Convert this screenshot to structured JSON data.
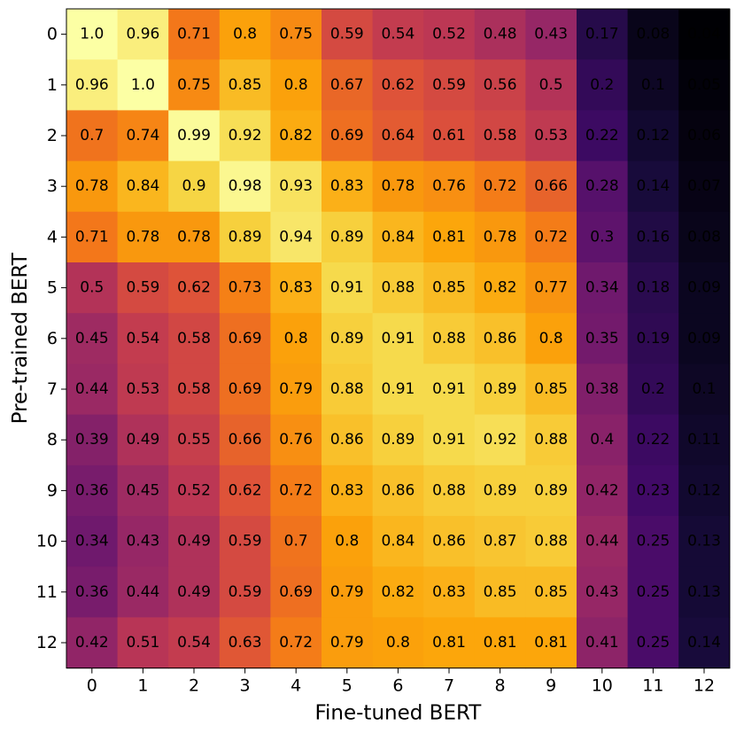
{
  "chart_data": {
    "type": "heatmap",
    "title": "",
    "xlabel": "Fine-tuned BERT",
    "ylabel": "Pre-trained BERT",
    "x_categories": [
      "0",
      "1",
      "2",
      "3",
      "4",
      "5",
      "6",
      "7",
      "8",
      "9",
      "10",
      "11",
      "12"
    ],
    "y_categories": [
      "0",
      "1",
      "2",
      "3",
      "4",
      "5",
      "6",
      "7",
      "8",
      "9",
      "10",
      "11",
      "12"
    ],
    "colormap": "inferno",
    "vmin": 0.04,
    "vmax": 1.0,
    "values": [
      [
        "1.0",
        "0.96",
        "0.71",
        "0.8",
        "0.75",
        "0.59",
        "0.54",
        "0.52",
        "0.48",
        "0.43",
        "0.17",
        "0.08",
        "0.04"
      ],
      [
        "0.96",
        "1.0",
        "0.75",
        "0.85",
        "0.8",
        "0.67",
        "0.62",
        "0.59",
        "0.56",
        "0.5",
        "0.2",
        "0.1",
        "0.05"
      ],
      [
        "0.7",
        "0.74",
        "0.99",
        "0.92",
        "0.82",
        "0.69",
        "0.64",
        "0.61",
        "0.58",
        "0.53",
        "0.22",
        "0.12",
        "0.06"
      ],
      [
        "0.78",
        "0.84",
        "0.9",
        "0.98",
        "0.93",
        "0.83",
        "0.78",
        "0.76",
        "0.72",
        "0.66",
        "0.28",
        "0.14",
        "0.07"
      ],
      [
        "0.71",
        "0.78",
        "0.78",
        "0.89",
        "0.94",
        "0.89",
        "0.84",
        "0.81",
        "0.78",
        "0.72",
        "0.3",
        "0.16",
        "0.08"
      ],
      [
        "0.5",
        "0.59",
        "0.62",
        "0.73",
        "0.83",
        "0.91",
        "0.88",
        "0.85",
        "0.82",
        "0.77",
        "0.34",
        "0.18",
        "0.09"
      ],
      [
        "0.45",
        "0.54",
        "0.58",
        "0.69",
        "0.8",
        "0.89",
        "0.91",
        "0.88",
        "0.86",
        "0.8",
        "0.35",
        "0.19",
        "0.09"
      ],
      [
        "0.44",
        "0.53",
        "0.58",
        "0.69",
        "0.79",
        "0.88",
        "0.91",
        "0.91",
        "0.89",
        "0.85",
        "0.38",
        "0.2",
        "0.1"
      ],
      [
        "0.39",
        "0.49",
        "0.55",
        "0.66",
        "0.76",
        "0.86",
        "0.89",
        "0.91",
        "0.92",
        "0.88",
        "0.4",
        "0.22",
        "0.11"
      ],
      [
        "0.36",
        "0.45",
        "0.52",
        "0.62",
        "0.72",
        "0.83",
        "0.86",
        "0.88",
        "0.89",
        "0.89",
        "0.42",
        "0.23",
        "0.12"
      ],
      [
        "0.34",
        "0.43",
        "0.49",
        "0.59",
        "0.7",
        "0.8",
        "0.84",
        "0.86",
        "0.87",
        "0.88",
        "0.44",
        "0.25",
        "0.13"
      ],
      [
        "0.36",
        "0.44",
        "0.49",
        "0.59",
        "0.69",
        "0.79",
        "0.82",
        "0.83",
        "0.85",
        "0.85",
        "0.43",
        "0.25",
        "0.13"
      ],
      [
        "0.42",
        "0.51",
        "0.54",
        "0.63",
        "0.72",
        "0.79",
        "0.8",
        "0.81",
        "0.81",
        "0.81",
        "0.41",
        "0.25",
        "0.14"
      ]
    ]
  }
}
